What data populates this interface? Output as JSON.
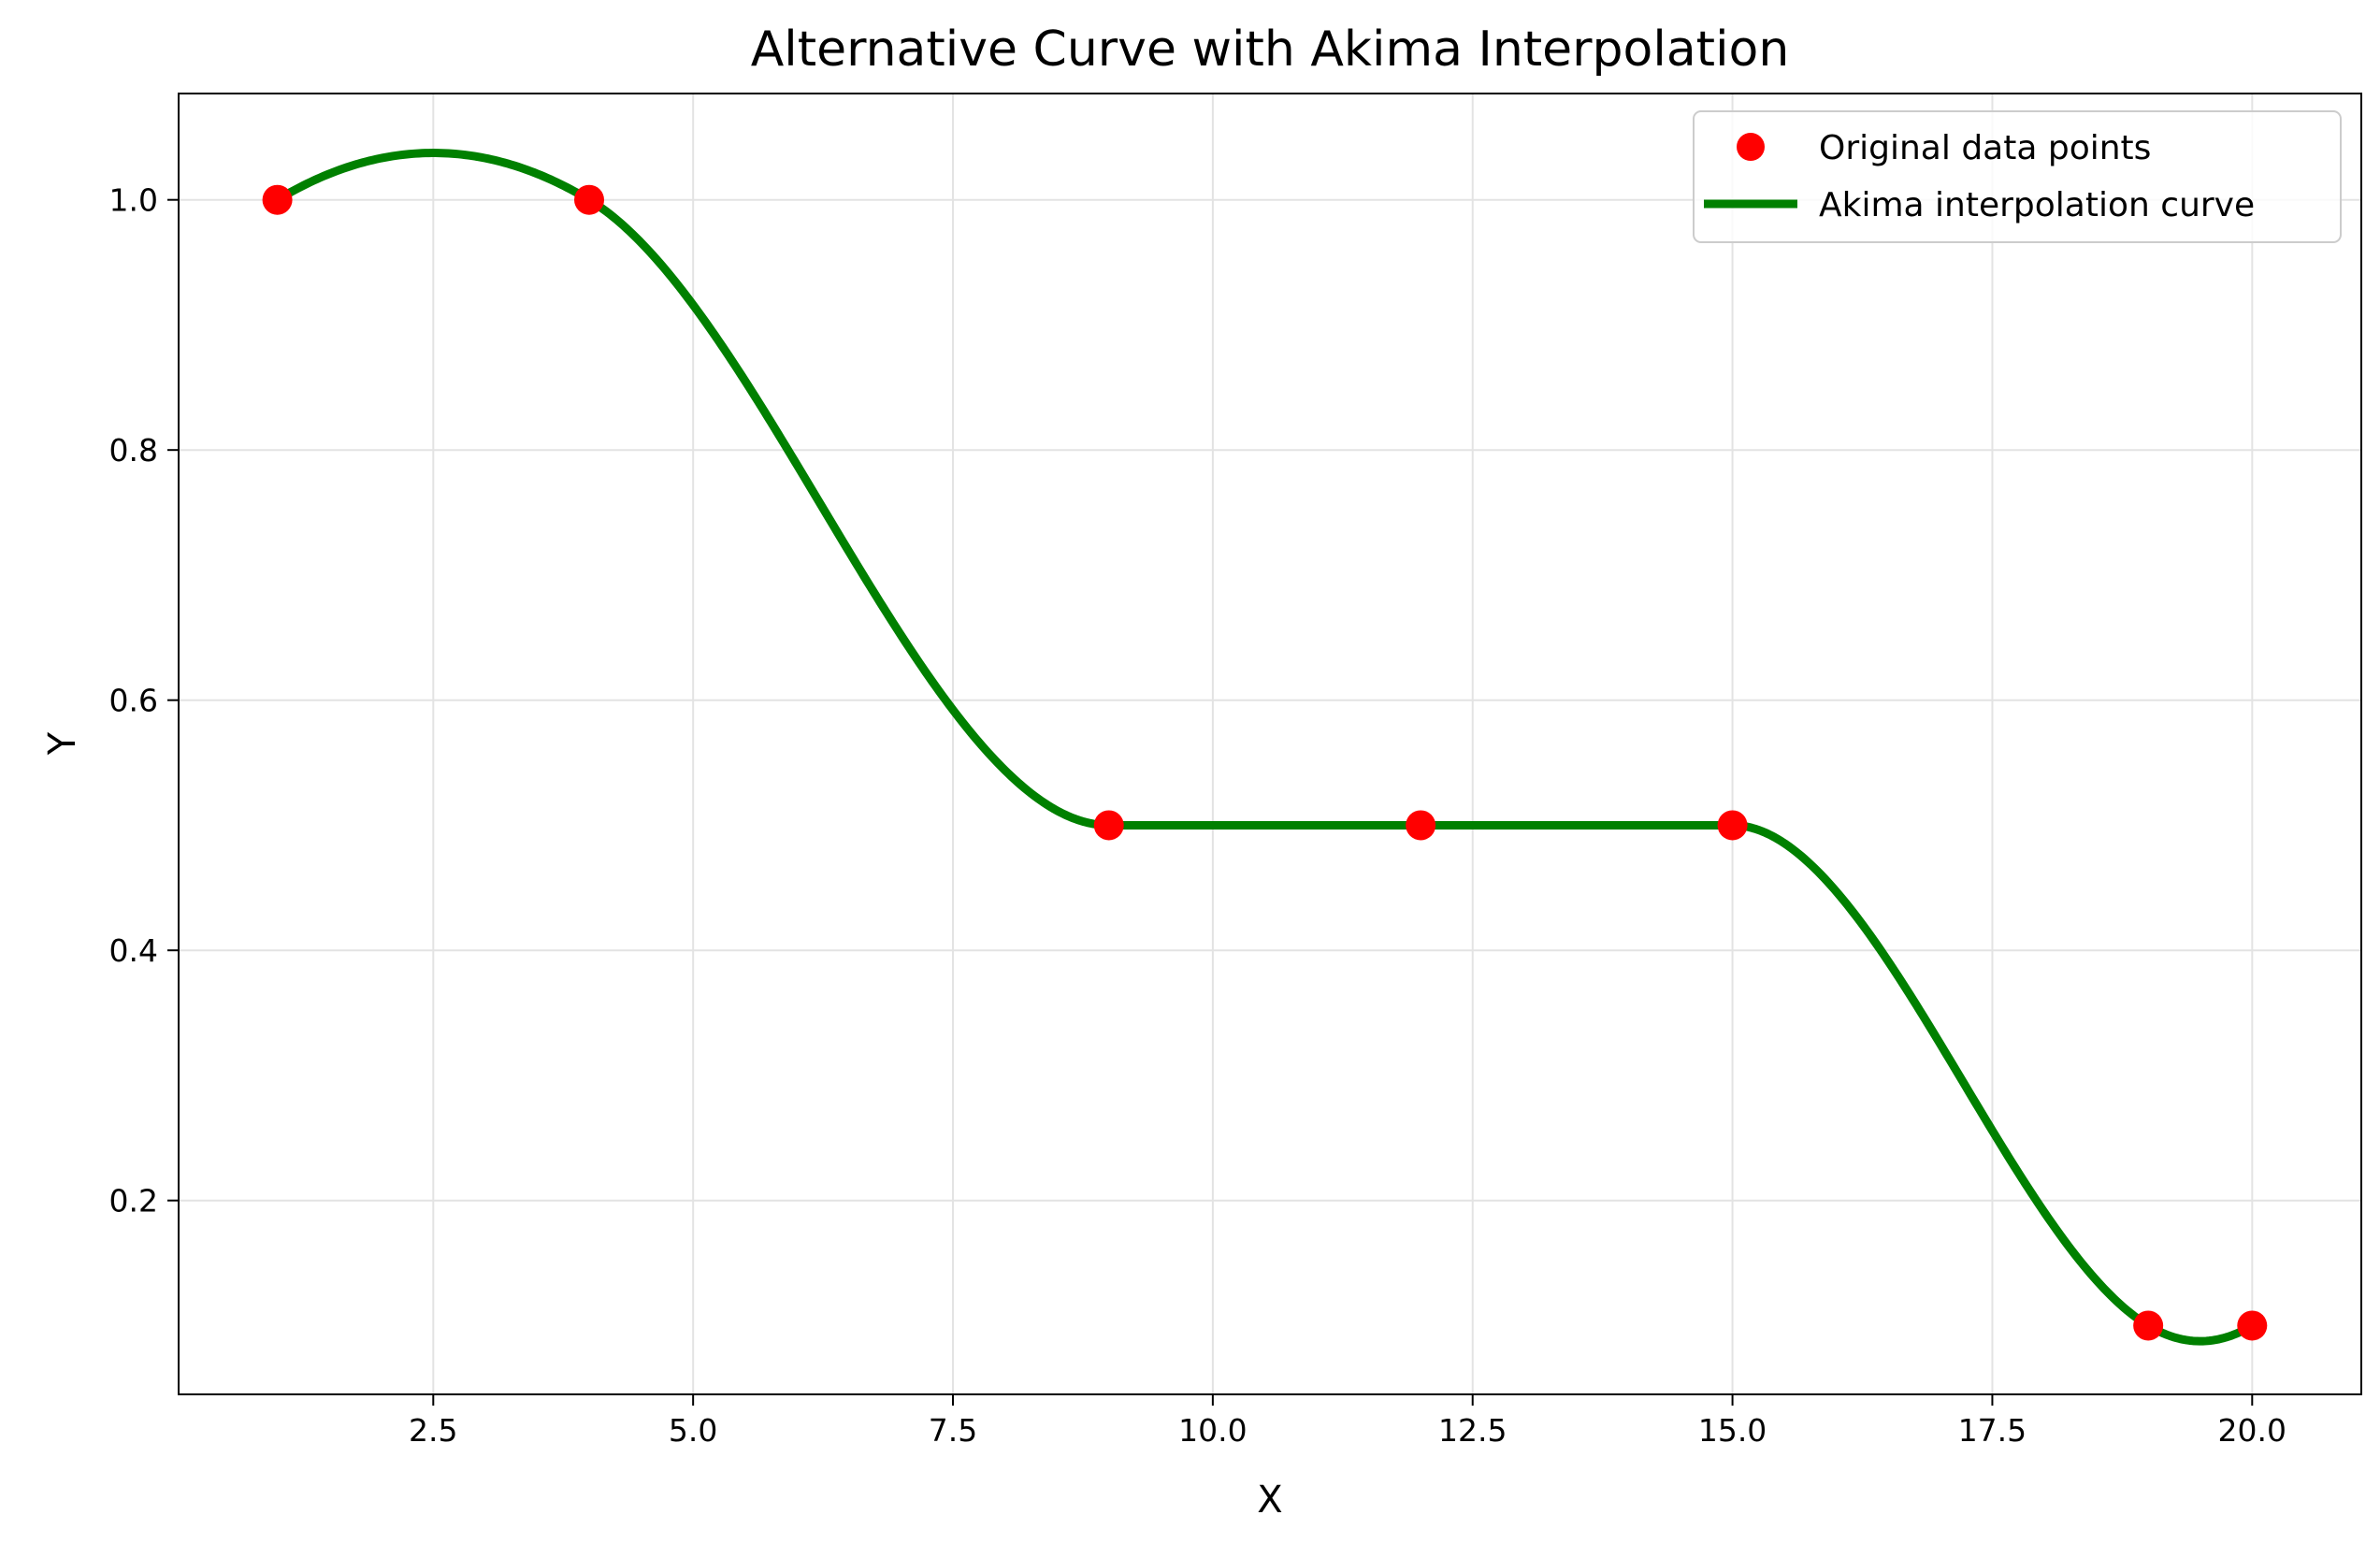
{
  "chart_data": {
    "type": "line",
    "title": "Alternative Curve with Akima Interpolation",
    "xlabel": "X",
    "ylabel": "Y",
    "xlim": [
      0.05,
      21.05
    ],
    "ylim": [
      0.045,
      1.085
    ],
    "xticks": [
      2.5,
      5.0,
      7.5,
      10.0,
      12.5,
      15.0,
      17.5,
      20.0
    ],
    "xtick_labels": [
      "2.5",
      "5.0",
      "7.5",
      "10.0",
      "12.5",
      "15.0",
      "17.5",
      "20.0"
    ],
    "yticks": [
      0.2,
      0.4,
      0.6,
      0.8,
      1.0
    ],
    "ytick_labels": [
      "0.2",
      "0.4",
      "0.6",
      "0.8",
      "1.0"
    ],
    "grid": true,
    "legend_position": "top-right",
    "series": [
      {
        "name": "Original data points",
        "kind": "scatter",
        "color": "#ff0000",
        "x": [
          1,
          4,
          9,
          12,
          15,
          19,
          20
        ],
        "y": [
          1.0,
          1.0,
          0.5,
          0.5,
          0.5,
          0.1,
          0.1
        ]
      },
      {
        "name": "Akima interpolation curve",
        "kind": "line",
        "color": "#008000",
        "method": "akima",
        "x": [
          1,
          4,
          9,
          12,
          15,
          19,
          20
        ],
        "y": [
          1.0,
          1.0,
          0.5,
          0.5,
          0.5,
          0.1,
          0.1
        ]
      }
    ]
  }
}
